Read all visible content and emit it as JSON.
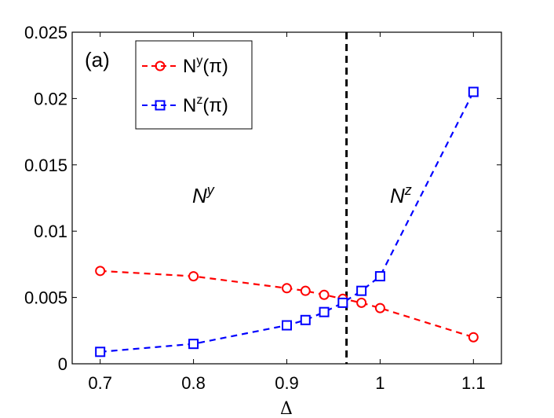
{
  "chart_data": {
    "type": "line",
    "title": "",
    "panel_label": "(a)",
    "xlabel": "Δ",
    "ylabel": "",
    "xlim": [
      0.67,
      1.13
    ],
    "ylim": [
      0,
      0.025
    ],
    "xticks": [
      0.7,
      0.8,
      0.9,
      1,
      1.1
    ],
    "xtick_labels": [
      "0.7",
      "0.8",
      "0.9",
      "1",
      "1.1"
    ],
    "yticks": [
      0,
      0.005,
      0.01,
      0.015,
      0.02,
      0.025
    ],
    "ytick_labels": [
      "0",
      "0.005",
      "0.01",
      "0.015",
      "0.02",
      "0.025"
    ],
    "grid": false,
    "legend_position": "top-left",
    "critical_line_x": 0.964,
    "region_labels": {
      "left": {
        "base": "N",
        "sup": "y"
      },
      "right": {
        "base": "N",
        "sup": "z"
      }
    },
    "series": [
      {
        "name": "N^y(π)",
        "legend_base": "N",
        "legend_sup": "y",
        "legend_arg": "(π)",
        "color": "#ff0000",
        "marker": "circle",
        "x": [
          0.7,
          0.8,
          0.9,
          0.92,
          0.94,
          0.96,
          0.98,
          1.0,
          1.1
        ],
        "values": [
          0.007,
          0.0066,
          0.0057,
          0.0055,
          0.0052,
          0.0049,
          0.0046,
          0.0042,
          0.002
        ]
      },
      {
        "name": "N^z(π)",
        "legend_base": "N",
        "legend_sup": "z",
        "legend_arg": "(π)",
        "color": "#0000ff",
        "marker": "square",
        "x": [
          0.7,
          0.8,
          0.9,
          0.92,
          0.94,
          0.96,
          0.98,
          1.0,
          1.1
        ],
        "values": [
          0.0009,
          0.0015,
          0.0029,
          0.0033,
          0.0039,
          0.0046,
          0.0055,
          0.0066,
          0.0205
        ]
      }
    ]
  }
}
